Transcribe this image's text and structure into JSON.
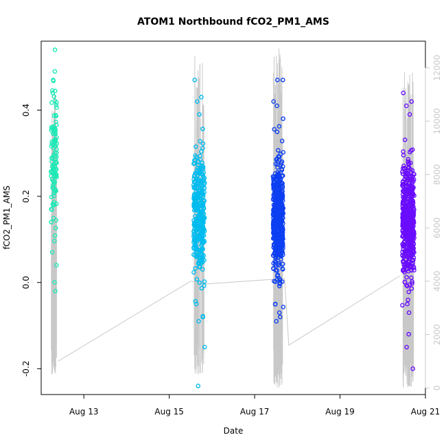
{
  "chart_data": {
    "type": "scatter",
    "title": "ATOM1 Northbound fCO2_PM1_AMS",
    "xlabel": "Date",
    "ylabel": "fCO2_PM1_AMS",
    "xlim": [
      12.0,
      21.0
    ],
    "ylim": [
      -0.26,
      0.56
    ],
    "y_ticks": [
      -0.2,
      0.0,
      0.2,
      0.4
    ],
    "y_tick_labels": [
      "-0.2",
      "0.0",
      "0.2",
      "0.4"
    ],
    "x_ticks": [
      13,
      15,
      17,
      19,
      21
    ],
    "x_tick_labels": [
      "Aug 13",
      "Aug 15",
      "Aug 17",
      "Aug 19",
      "Aug 21"
    ],
    "y2lim": [
      -250,
      13000
    ],
    "y2_ticks": [
      0,
      2000,
      4000,
      6000,
      8000,
      10000,
      12000
    ],
    "y2_tick_labels": [
      "0",
      "2000",
      "4000",
      "6000",
      "8000",
      "10000",
      "12000"
    ],
    "secondary_line_color": "#c8c8c8",
    "clusters": [
      {
        "name": "Aug 12",
        "x_center": 12.3,
        "x_spread": 0.07,
        "n": 110,
        "mean": 0.29,
        "sd": 0.08,
        "outliers": [
          0.54,
          0.49,
          0.47,
          0.04,
          0.0,
          -0.02,
          0.07,
          0.14
        ],
        "color": "#1de9b6",
        "bar_top": 11000,
        "bar_bottom": 500
      },
      {
        "name": "Aug 15",
        "x_center": 15.7,
        "x_spread": 0.13,
        "n": 320,
        "mean": 0.16,
        "sd": 0.07,
        "outliers": [
          0.47,
          0.43,
          0.42,
          -0.24,
          -0.15,
          -0.09,
          -0.08,
          -0.05,
          0.39
        ],
        "color": "#00bcee",
        "bar_top": 12500,
        "bar_bottom": 500
      },
      {
        "name": "Aug 17",
        "x_center": 17.55,
        "x_spread": 0.12,
        "n": 500,
        "mean": 0.15,
        "sd": 0.06,
        "outliers": [
          0.47,
          0.47,
          0.42,
          0.41,
          0.38,
          -0.09,
          -0.08,
          -0.07,
          -0.05
        ],
        "color": "#0d3ff2",
        "bar_top": 12800,
        "bar_bottom": 0
      },
      {
        "name": "Aug 20",
        "x_center": 20.6,
        "x_spread": 0.14,
        "n": 520,
        "mean": 0.15,
        "sd": 0.07,
        "outliers": [
          0.44,
          0.42,
          0.41,
          -0.2,
          -0.15,
          -0.12,
          -0.07,
          -0.05,
          0.39
        ],
        "color": "#6a0dff",
        "bar_top": 12000,
        "bar_bottom": 0
      }
    ],
    "connector_points": [
      {
        "x": 12.4,
        "y2": 1000
      },
      {
        "x": 15.5,
        "y2": 4000
      },
      {
        "x": 15.9,
        "y2": 3900
      },
      {
        "x": 17.7,
        "y2": 4100
      },
      {
        "x": 17.8,
        "y2": 1600
      },
      {
        "x": 20.4,
        "y2": 4200
      }
    ]
  }
}
